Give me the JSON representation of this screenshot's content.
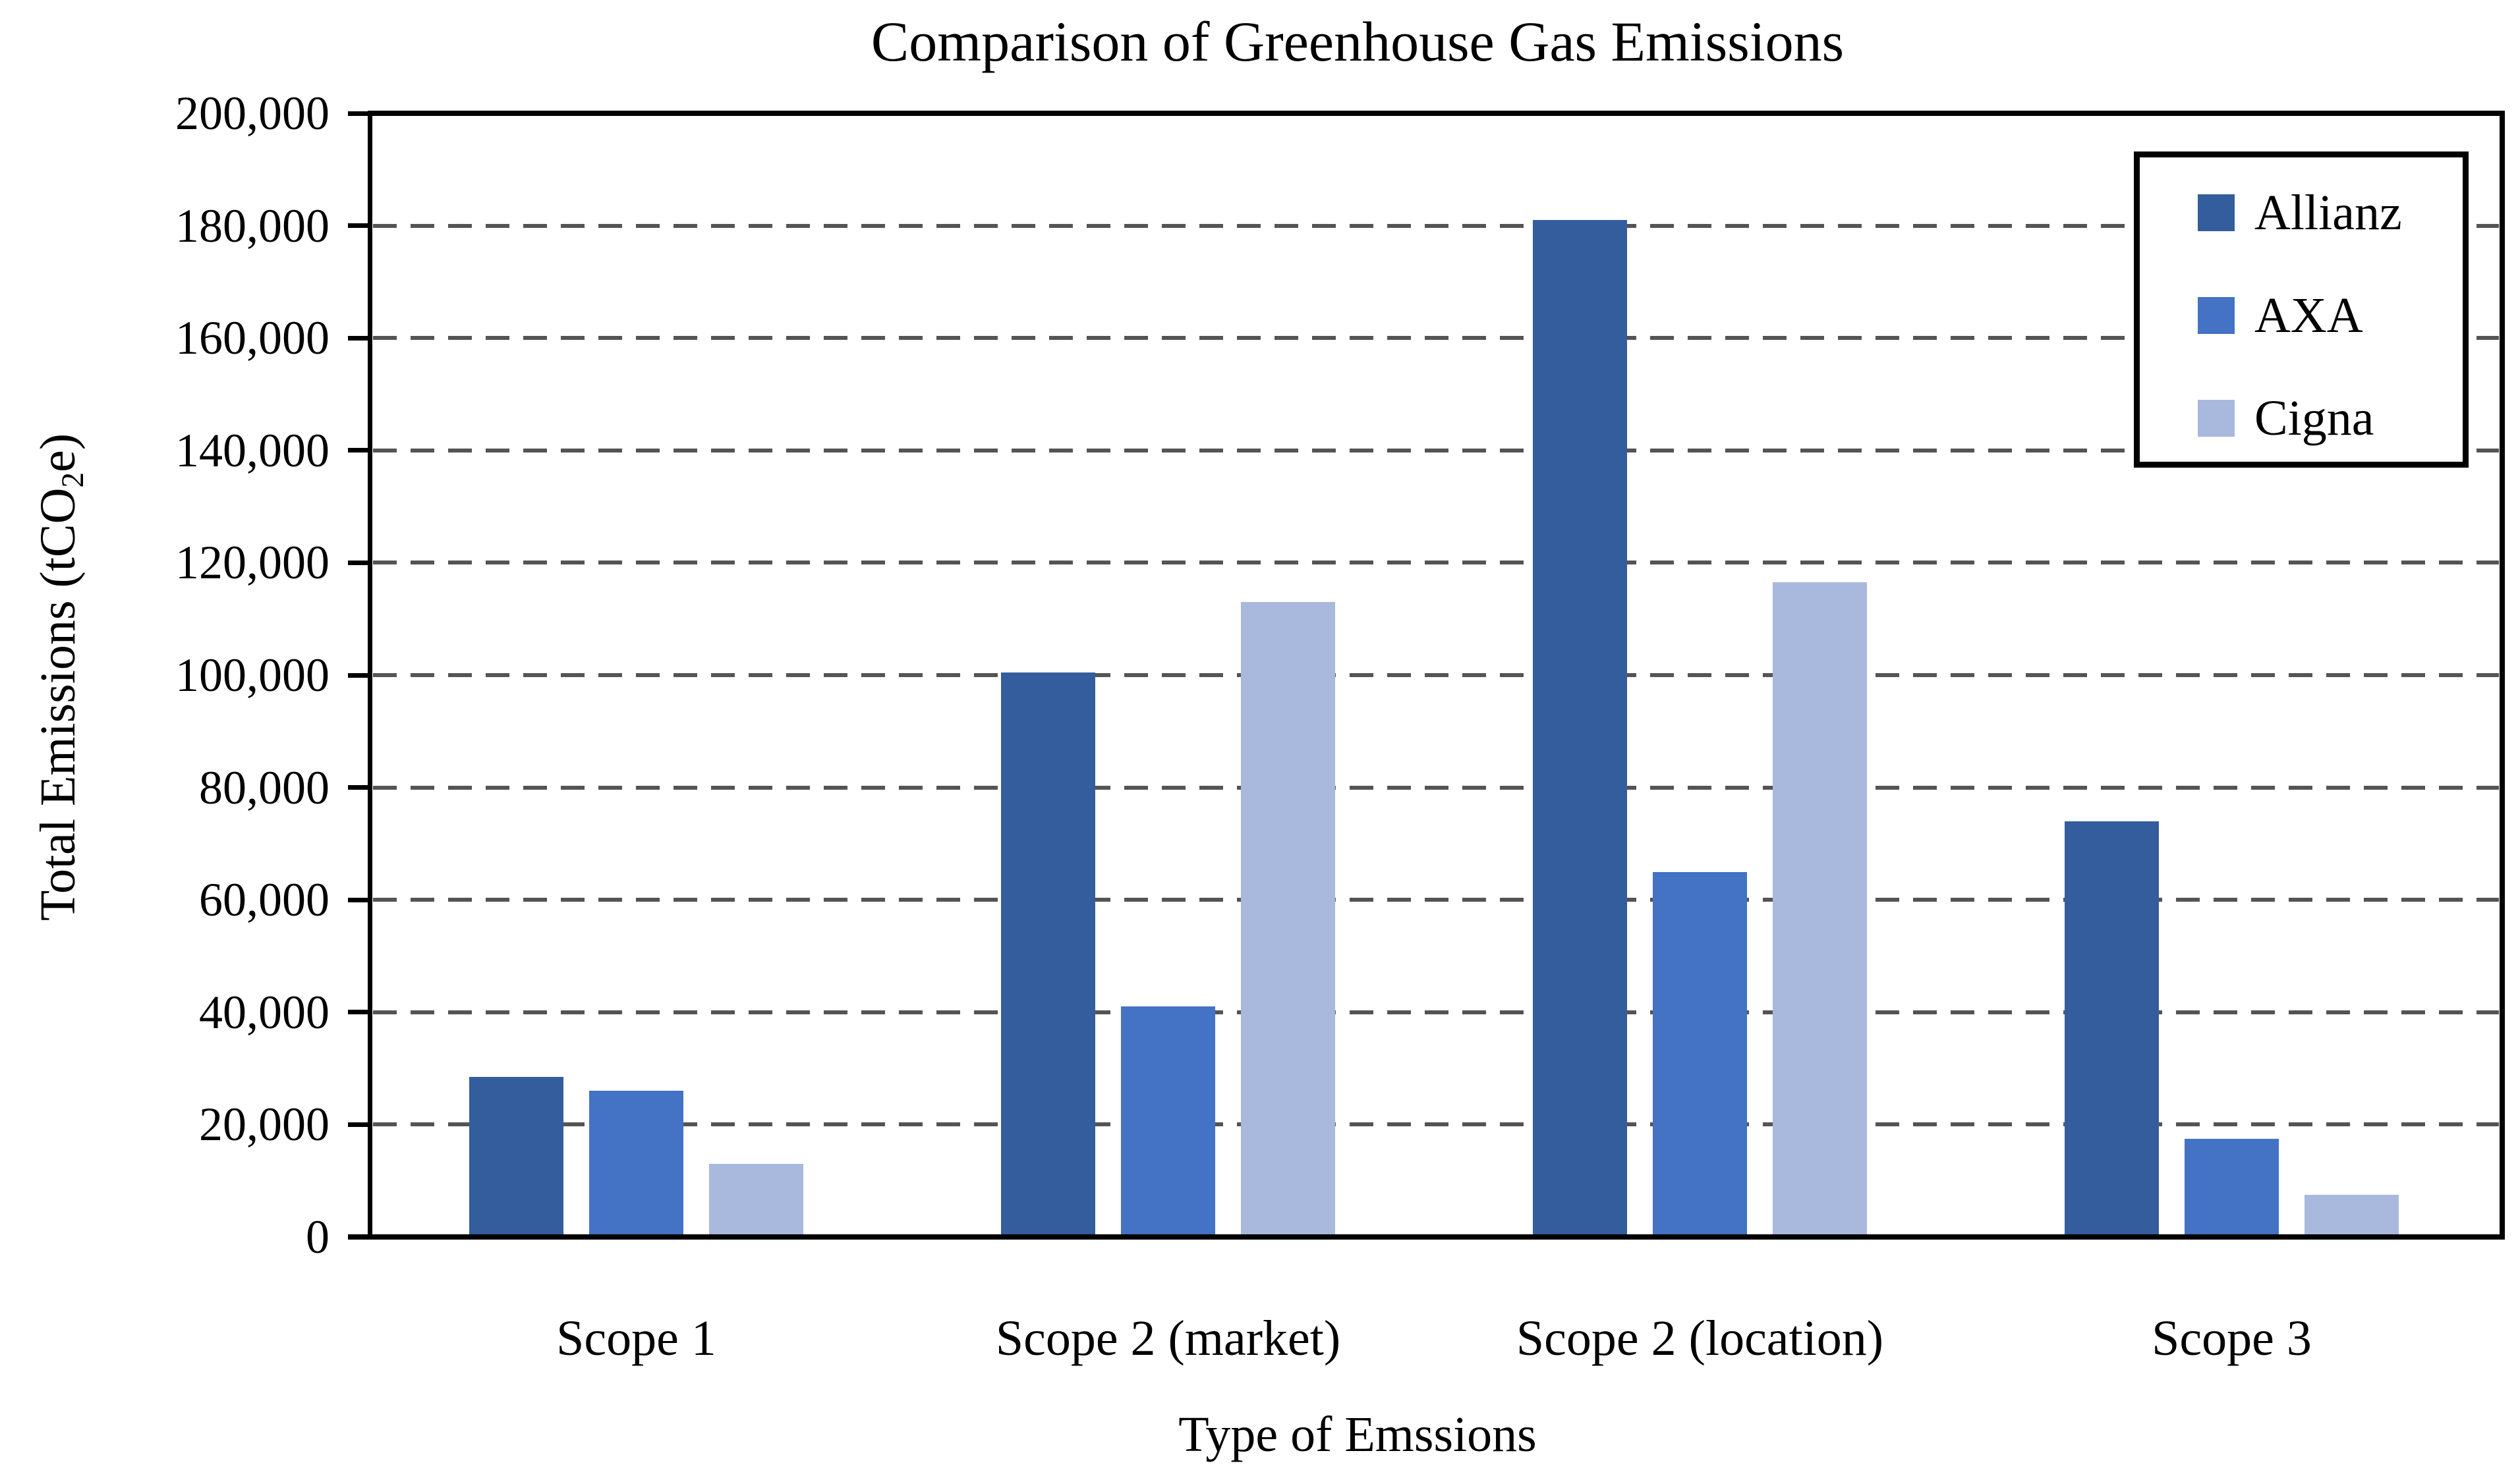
{
  "chart_data": {
    "type": "bar",
    "title": "Comparison of Greenhouse Gas Emissions",
    "xlabel": "Type of Emssions",
    "ylabel": "Total Emissions (tCO2e)",
    "ylabel_parts": {
      "pre": "Total Emissions (tCO",
      "sub": "2",
      "post": "e)"
    },
    "categories": [
      "Scope 1",
      "Scope 2 (market)",
      "Scope 2 (location)",
      "Scope 3"
    ],
    "series": [
      {
        "name": "Allianz",
        "color": "#345D9D",
        "values": [
          28500,
          100500,
          181000,
          74000
        ]
      },
      {
        "name": "AXA",
        "color": "#4472C4",
        "values": [
          26000,
          41000,
          65000,
          17500
        ]
      },
      {
        "name": "Cigna",
        "color": "#A9B8DD",
        "values": [
          13000,
          113000,
          116500,
          7500
        ]
      }
    ],
    "ylim": [
      0,
      200000
    ],
    "ytick_step": 20000,
    "ytick_labels": [
      "0",
      "20,000",
      "40,000",
      "60,000",
      "80,000",
      "100,000",
      "120,000",
      "140,000",
      "160,000",
      "180,000",
      "200,000"
    ],
    "grid": "horizontal-dashed",
    "legend_position": "top-right"
  },
  "colors": {
    "axis": "#000000",
    "gridline": "#545454",
    "plot_background": "#FFFFFF"
  }
}
